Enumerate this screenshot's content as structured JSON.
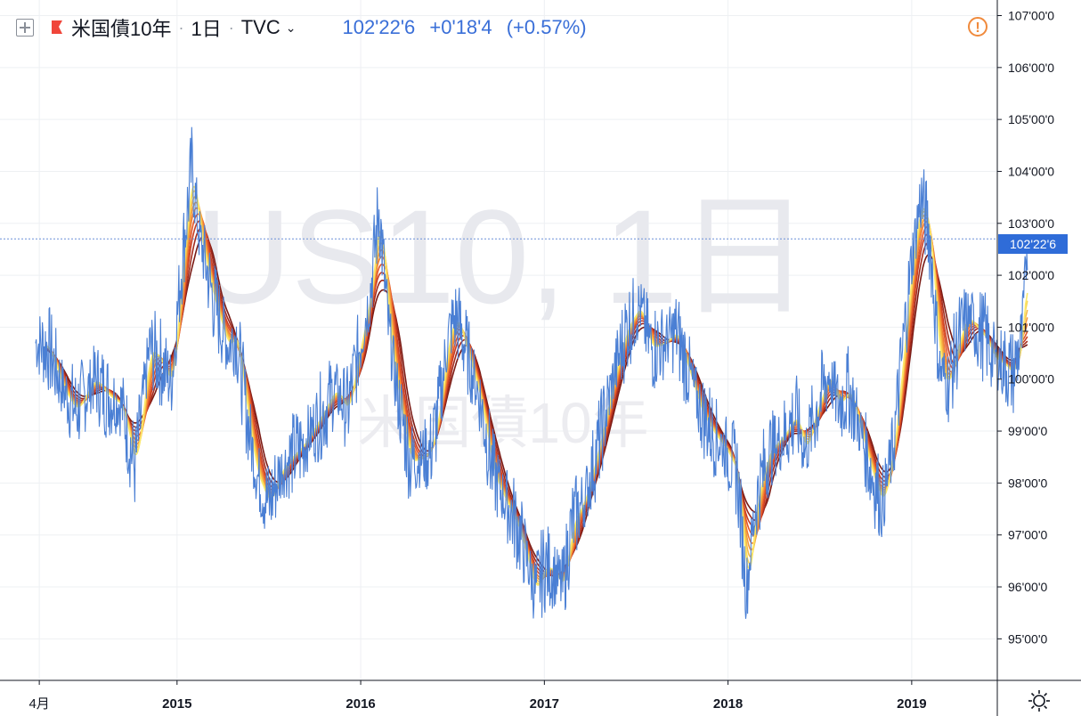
{
  "header": {
    "symbol": "米国債10年",
    "interval": "1日",
    "exchange": "TVC",
    "last": "102'22'6",
    "change": "+0'18'4",
    "change_pct": "(+0.57%)"
  },
  "watermark": {
    "symbol": "US10, 1日",
    "name": "米国債10年"
  },
  "last_price_tag": "102'22'6",
  "colors": {
    "price_line": "#4a7fd4",
    "accent": "#2f6cd8",
    "alert": "#f08a3c",
    "ribbon": [
      "#7a1a14",
      "#a32a1c",
      "#c73d22",
      "#e0552a",
      "#ee7a34",
      "#f29a3c",
      "#f6b947",
      "#f9d556",
      "#fbe86a"
    ]
  },
  "icons": {
    "add": "plus-box-icon",
    "flag": "flag-icon",
    "dropdown": "chevron-down-icon",
    "alert": "alert-icon",
    "settings": "gear-icon"
  },
  "chart_data": {
    "type": "line",
    "title": "米国債10年",
    "y_axis_ticks": [
      "107'00'0",
      "106'00'0",
      "105'00'0",
      "104'00'0",
      "103'00'0",
      "102'00'0",
      "101'00'0",
      "100'00'0",
      "99'00'0",
      "98'00'0",
      "97'00'0",
      "96'00'0",
      "95'00'0"
    ],
    "ylim": [
      94.2,
      107.3
    ],
    "x_axis_ticks": [
      {
        "label": "4月",
        "t": 2014.25
      },
      {
        "label": "2015",
        "t": 2015.0
      },
      {
        "label": "2016",
        "t": 2016.0
      },
      {
        "label": "2017",
        "t": 2017.0
      },
      {
        "label": "2018",
        "t": 2018.0
      },
      {
        "label": "2019",
        "t": 2019.0
      }
    ],
    "xlim": [
      2014.23,
      2019.66
    ],
    "last_value": 102.7,
    "series": [
      {
        "values": [
          [
            2014.23,
            100.7
          ],
          [
            2014.3,
            100.6
          ],
          [
            2014.38,
            99.8
          ],
          [
            2014.45,
            99.4
          ],
          [
            2014.55,
            100.0
          ],
          [
            2014.62,
            99.7
          ],
          [
            2014.7,
            99.5
          ],
          [
            2014.77,
            98.3
          ],
          [
            2014.85,
            100.6
          ],
          [
            2014.92,
            100.3
          ],
          [
            2014.97,
            99.9
          ],
          [
            2015.02,
            102.0
          ],
          [
            2015.08,
            104.1
          ],
          [
            2015.12,
            102.8
          ],
          [
            2015.2,
            101.5
          ],
          [
            2015.28,
            100.6
          ],
          [
            2015.32,
            100.9
          ],
          [
            2015.38,
            99.3
          ],
          [
            2015.43,
            98.2
          ],
          [
            2015.5,
            97.6
          ],
          [
            2015.56,
            98.2
          ],
          [
            2015.62,
            98.5
          ],
          [
            2015.68,
            98.7
          ],
          [
            2015.75,
            99.1
          ],
          [
            2015.8,
            99.4
          ],
          [
            2015.86,
            99.8
          ],
          [
            2015.93,
            99.4
          ],
          [
            2015.97,
            100.2
          ],
          [
            2016.05,
            101.6
          ],
          [
            2016.1,
            103.3
          ],
          [
            2016.15,
            101.0
          ],
          [
            2016.2,
            99.7
          ],
          [
            2016.27,
            98.4
          ],
          [
            2016.33,
            98.5
          ],
          [
            2016.38,
            98.6
          ],
          [
            2016.42,
            99.3
          ],
          [
            2016.48,
            100.9
          ],
          [
            2016.52,
            101.2
          ],
          [
            2016.58,
            100.5
          ],
          [
            2016.65,
            99.6
          ],
          [
            2016.72,
            98.2
          ],
          [
            2016.78,
            97.7
          ],
          [
            2016.85,
            97.2
          ],
          [
            2016.9,
            96.6
          ],
          [
            2016.95,
            95.9
          ],
          [
            2017.0,
            96.4
          ],
          [
            2017.05,
            96.3
          ],
          [
            2017.1,
            96.0
          ],
          [
            2017.15,
            97.2
          ],
          [
            2017.22,
            97.7
          ],
          [
            2017.3,
            98.8
          ],
          [
            2017.38,
            100.1
          ],
          [
            2017.45,
            101.0
          ],
          [
            2017.52,
            101.4
          ],
          [
            2017.58,
            100.6
          ],
          [
            2017.65,
            100.7
          ],
          [
            2017.72,
            100.9
          ],
          [
            2017.78,
            100.2
          ],
          [
            2017.85,
            99.4
          ],
          [
            2017.93,
            98.9
          ],
          [
            2017.98,
            98.7
          ],
          [
            2018.05,
            98.2
          ],
          [
            2018.1,
            95.9
          ],
          [
            2018.15,
            97.6
          ],
          [
            2018.22,
            98.6
          ],
          [
            2018.3,
            98.9
          ],
          [
            2018.37,
            99.3
          ],
          [
            2018.42,
            98.6
          ],
          [
            2018.47,
            99.3
          ],
          [
            2018.55,
            100.1
          ],
          [
            2018.6,
            99.5
          ],
          [
            2018.66,
            99.8
          ],
          [
            2018.72,
            99.0
          ],
          [
            2018.78,
            98.2
          ],
          [
            2018.84,
            97.6
          ],
          [
            2018.9,
            98.7
          ],
          [
            2018.95,
            100.5
          ],
          [
            2019.0,
            102.3
          ],
          [
            2019.05,
            103.5
          ],
          [
            2019.1,
            102.7
          ],
          [
            2019.15,
            100.2
          ],
          [
            2019.2,
            99.9
          ],
          [
            2019.25,
            100.7
          ],
          [
            2019.3,
            101.2
          ],
          [
            2019.35,
            101.0
          ],
          [
            2019.4,
            100.8
          ],
          [
            2019.45,
            100.4
          ],
          [
            2019.5,
            100.3
          ],
          [
            2019.55,
            100.1
          ],
          [
            2019.6,
            100.8
          ],
          [
            2019.63,
            102.7
          ]
        ]
      }
    ]
  }
}
